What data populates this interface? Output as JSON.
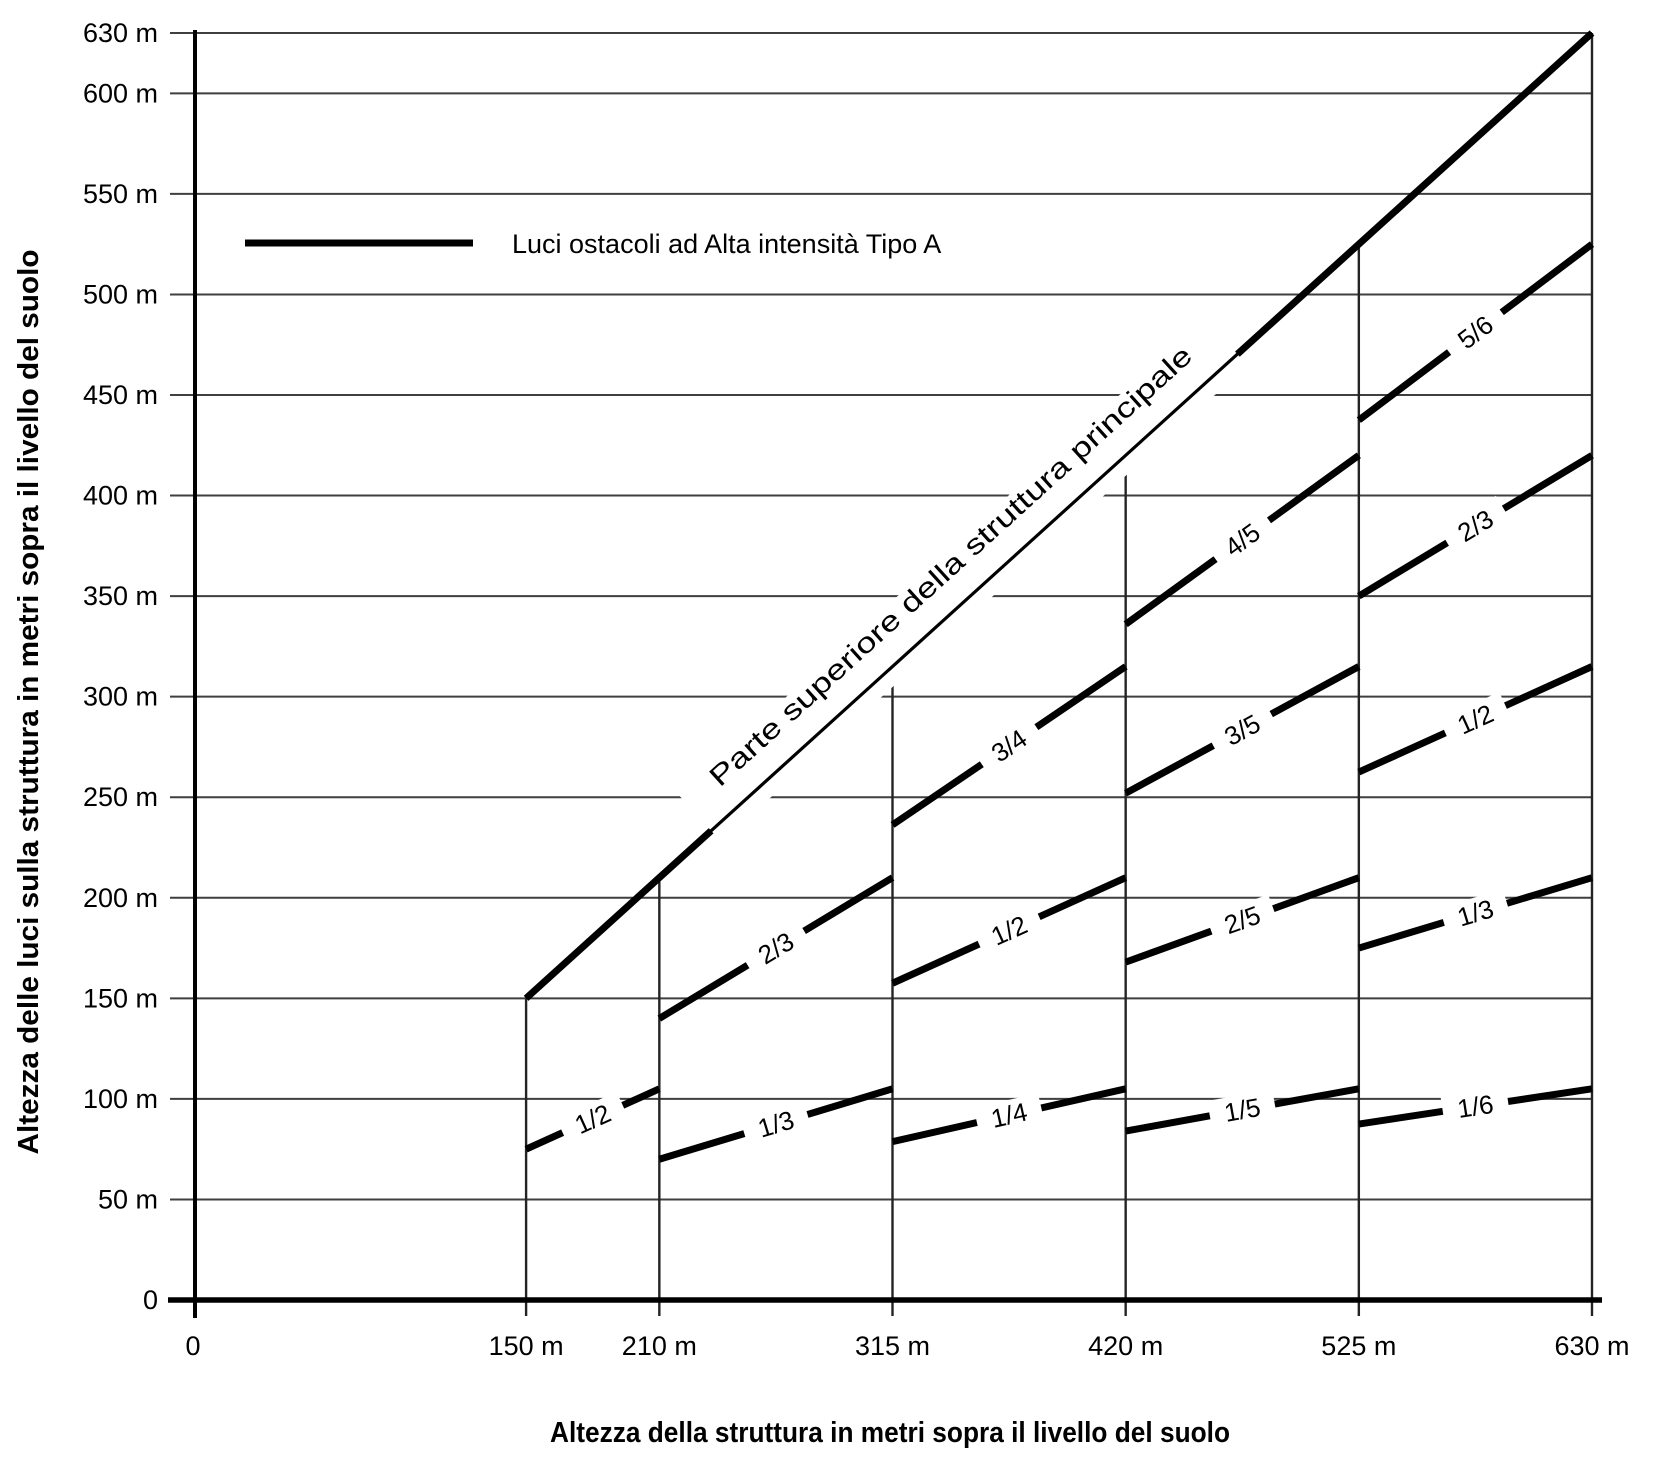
{
  "chart_data": {
    "type": "line",
    "title": "",
    "legend": {
      "position": "top-left-inside",
      "entries": [
        {
          "label": "Luci ostacoli ad Alta intensità Tipo A",
          "style": "thick-black-line"
        }
      ]
    },
    "xlabel": "Altezza della struttura in metri sopra il livello del suolo",
    "ylabel": "Altezza delle luci sulla struttura in metri sopra il livello del suolo",
    "structure_top_label": "Parte superiore della struttura principale",
    "xlim": [
      0,
      630
    ],
    "ylim": [
      0,
      630
    ],
    "grid": "on",
    "x_ticks": [
      {
        "value": 0,
        "label": "0"
      },
      {
        "value": 150,
        "label": "150 m"
      },
      {
        "value": 210,
        "label": "210 m"
      },
      {
        "value": 315,
        "label": "315 m"
      },
      {
        "value": 420,
        "label": "420 m"
      },
      {
        "value": 525,
        "label": "525 m"
      },
      {
        "value": 630,
        "label": "630 m"
      }
    ],
    "y_ticks": [
      {
        "value": 0,
        "label": "0"
      },
      {
        "value": 50,
        "label": "50 m"
      },
      {
        "value": 100,
        "label": "100 m"
      },
      {
        "value": 150,
        "label": "150 m"
      },
      {
        "value": 200,
        "label": "200 m"
      },
      {
        "value": 250,
        "label": "250 m"
      },
      {
        "value": 300,
        "label": "300 m"
      },
      {
        "value": 350,
        "label": "350 m"
      },
      {
        "value": 400,
        "label": "400 m"
      },
      {
        "value": 450,
        "label": "450 m"
      },
      {
        "value": 500,
        "label": "500 m"
      },
      {
        "value": 550,
        "label": "550 m"
      },
      {
        "value": 600,
        "label": "600 m"
      },
      {
        "value": 630,
        "label": "630 m"
      }
    ],
    "structure_top_line": {
      "x1": 150,
      "y1": 150,
      "x2": 630,
      "y2": 630
    },
    "light_segments": [
      {
        "x1": 150,
        "x2": 210,
        "fraction": "1/2",
        "num": 1,
        "den": 2,
        "y1": 75,
        "y2": 105
      },
      {
        "x1": 210,
        "x2": 315,
        "fraction": "2/3",
        "num": 2,
        "den": 3,
        "y1": 140,
        "y2": 210
      },
      {
        "x1": 210,
        "x2": 315,
        "fraction": "1/3",
        "num": 1,
        "den": 3,
        "y1": 70,
        "y2": 105
      },
      {
        "x1": 315,
        "x2": 420,
        "fraction": "3/4",
        "num": 3,
        "den": 4,
        "y1": 236.25,
        "y2": 315
      },
      {
        "x1": 315,
        "x2": 420,
        "fraction": "1/2",
        "num": 1,
        "den": 2,
        "y1": 157.5,
        "y2": 210
      },
      {
        "x1": 315,
        "x2": 420,
        "fraction": "1/4",
        "num": 1,
        "den": 4,
        "y1": 78.75,
        "y2": 105
      },
      {
        "x1": 420,
        "x2": 525,
        "fraction": "4/5",
        "num": 4,
        "den": 5,
        "y1": 336,
        "y2": 420
      },
      {
        "x1": 420,
        "x2": 525,
        "fraction": "3/5",
        "num": 3,
        "den": 5,
        "y1": 252,
        "y2": 315
      },
      {
        "x1": 420,
        "x2": 525,
        "fraction": "2/5",
        "num": 2,
        "den": 5,
        "y1": 168,
        "y2": 210
      },
      {
        "x1": 420,
        "x2": 525,
        "fraction": "1/5",
        "num": 1,
        "den": 5,
        "y1": 84,
        "y2": 105
      },
      {
        "x1": 525,
        "x2": 630,
        "fraction": "5/6",
        "num": 5,
        "den": 6,
        "y1": 437.5,
        "y2": 525
      },
      {
        "x1": 525,
        "x2": 630,
        "fraction": "2/3",
        "num": 2,
        "den": 3,
        "y1": 350,
        "y2": 420
      },
      {
        "x1": 525,
        "x2": 630,
        "fraction": "1/2",
        "num": 1,
        "den": 2,
        "y1": 262.5,
        "y2": 315
      },
      {
        "x1": 525,
        "x2": 630,
        "fraction": "1/3",
        "num": 1,
        "den": 3,
        "y1": 175,
        "y2": 210
      },
      {
        "x1": 525,
        "x2": 630,
        "fraction": "1/6",
        "num": 1,
        "den": 6,
        "y1": 87.5,
        "y2": 105
      }
    ],
    "colors": {
      "line": "#000000",
      "grid_horizontal": "#3f3f3f",
      "grid_vertical": "#242424",
      "background": "#ffffff",
      "text": "#000000"
    }
  }
}
